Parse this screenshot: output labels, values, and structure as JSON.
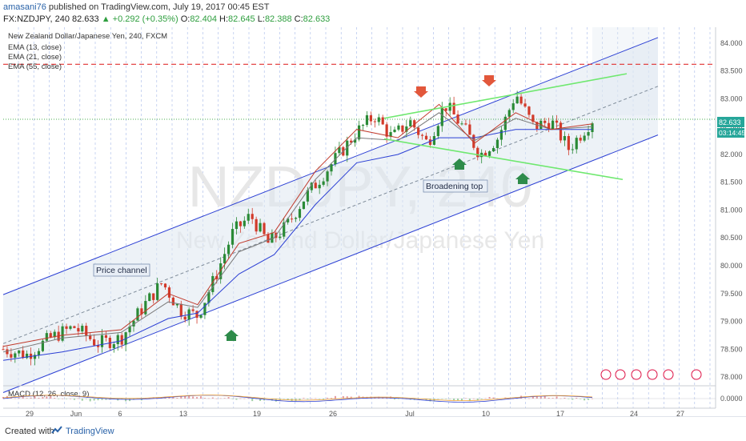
{
  "header": {
    "user": "amasani76",
    "published": "published on TradingView.com, July 19, 2017 00:45 EST",
    "symbol_interval": "FX:NZDJPY, 240",
    "price": "82.633",
    "change": "▲ +0.292 (+0.35%)",
    "o_label": "O:",
    "o_value": "82.404",
    "h_label": "H:",
    "h_value": "82.645",
    "l_label": "L:",
    "l_value": "82.388",
    "c_label": "C:",
    "c_value": "82.633"
  },
  "legend": {
    "title": "New Zealand Dollar/Japanese Yen, 240, FXCM",
    "ema13": "EMA (13, close)",
    "ema21": "EMA (21, close)",
    "ema55": "EMA (55, close)",
    "macd": "MACD (12, 26, close, 9)"
  },
  "watermark": {
    "symbol": "NZDJPY, 240",
    "name": "New Zealand Dollar/Japanese Yen"
  },
  "annotations": {
    "price_channel": "Price channel",
    "broadening_top": "Broadening top"
  },
  "price_tag": {
    "value": "82.633",
    "timer": "03:14:45"
  },
  "footer": {
    "created": "Created with",
    "brand": "TradingView"
  },
  "colors": {
    "channel": "#2b3fd4",
    "broadening": "#6fe86f",
    "resistance": "#e03030",
    "ema13": "#c0392b",
    "ema21": "#7a7a7a",
    "ema55": "#2b3fd4",
    "up_candle": "#2a8a36",
    "down_candle": "#d23a2a",
    "buy_arrow": "#2e8b4a",
    "sell_arrow": "#e2573b"
  },
  "chart_data": {
    "type": "candlestick",
    "symbol": "FX:NZDJPY",
    "interval": "240",
    "ylim": [
      77.9,
      84.2
    ],
    "y_ticks": [
      "84.000",
      "83.500",
      "83.000",
      "82.500",
      "82.000",
      "81.500",
      "81.000",
      "80.500",
      "80.000",
      "79.500",
      "79.000",
      "78.500",
      "78.000"
    ],
    "x_ticks": [
      "29",
      "Jun",
      "6",
      "13",
      "19",
      "26",
      "Jul",
      "10",
      "17",
      "24",
      "27"
    ],
    "last_price": 82.633,
    "resistance_level": 83.62,
    "series": [
      {
        "name": "EMA (13, close)",
        "points": [
          [
            0,
            78.55
          ],
          [
            0.1,
            78.75
          ],
          [
            0.2,
            78.85
          ],
          [
            0.28,
            79.5
          ],
          [
            0.33,
            79.3
          ],
          [
            0.4,
            80.4
          ],
          [
            0.46,
            80.6
          ],
          [
            0.53,
            81.7
          ],
          [
            0.6,
            82.45
          ],
          [
            0.67,
            82.3
          ],
          [
            0.74,
            82.9
          ],
          [
            0.8,
            82.2
          ],
          [
            0.87,
            82.75
          ],
          [
            0.93,
            82.45
          ],
          [
            1.0,
            82.55
          ]
        ]
      },
      {
        "name": "EMA (21, close)",
        "points": [
          [
            0,
            78.45
          ],
          [
            0.1,
            78.7
          ],
          [
            0.2,
            78.8
          ],
          [
            0.28,
            79.35
          ],
          [
            0.33,
            79.25
          ],
          [
            0.4,
            80.25
          ],
          [
            0.46,
            80.5
          ],
          [
            0.53,
            81.55
          ],
          [
            0.6,
            82.3
          ],
          [
            0.67,
            82.25
          ],
          [
            0.74,
            82.75
          ],
          [
            0.8,
            82.25
          ],
          [
            0.87,
            82.65
          ],
          [
            0.93,
            82.45
          ],
          [
            1.0,
            82.5
          ]
        ]
      },
      {
        "name": "EMA (55, close)",
        "points": [
          [
            0,
            78.3
          ],
          [
            0.1,
            78.45
          ],
          [
            0.2,
            78.65
          ],
          [
            0.28,
            79.05
          ],
          [
            0.33,
            79.15
          ],
          [
            0.4,
            79.85
          ],
          [
            0.46,
            80.2
          ],
          [
            0.53,
            81.1
          ],
          [
            0.6,
            81.85
          ],
          [
            0.67,
            82.0
          ],
          [
            0.74,
            82.3
          ],
          [
            0.8,
            82.3
          ],
          [
            0.87,
            82.45
          ],
          [
            0.93,
            82.45
          ],
          [
            1.0,
            82.45
          ]
        ]
      }
    ],
    "candles_path": [
      [
        0,
        78.5
      ],
      [
        0.04,
        78.4
      ],
      [
        0.08,
        78.7
      ],
      [
        0.12,
        78.9
      ],
      [
        0.16,
        78.6
      ],
      [
        0.2,
        78.7
      ],
      [
        0.24,
        79.3
      ],
      [
        0.27,
        79.7
      ],
      [
        0.3,
        79.2
      ],
      [
        0.33,
        79.1
      ],
      [
        0.36,
        79.8
      ],
      [
        0.39,
        80.6
      ],
      [
        0.42,
        80.9
      ],
      [
        0.45,
        80.4
      ],
      [
        0.48,
        80.7
      ],
      [
        0.51,
        81.2
      ],
      [
        0.54,
        81.6
      ],
      [
        0.57,
        82.0
      ],
      [
        0.6,
        82.4
      ],
      [
        0.63,
        82.7
      ],
      [
        0.66,
        82.3
      ],
      [
        0.69,
        82.6
      ],
      [
        0.72,
        82.2
      ],
      [
        0.75,
        82.9
      ],
      [
        0.78,
        82.5
      ],
      [
        0.81,
        82.0
      ],
      [
        0.84,
        82.3
      ],
      [
        0.87,
        83.1
      ],
      [
        0.9,
        82.5
      ],
      [
        0.93,
        82.6
      ],
      [
        0.96,
        82.1
      ],
      [
        1.0,
        82.63
      ]
    ],
    "macd": {
      "ylim": [
        -0.5,
        0.5
      ],
      "tick": "0.0000"
    }
  }
}
